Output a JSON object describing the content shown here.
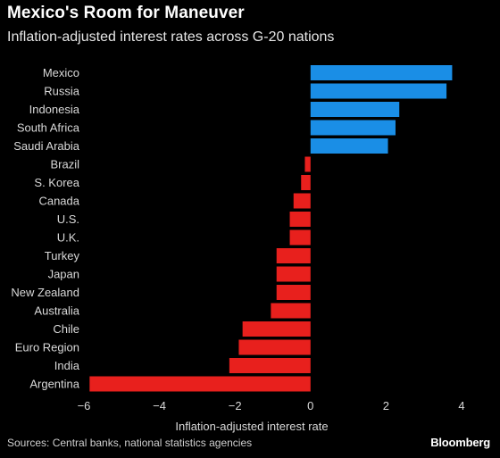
{
  "title": "Mexico's Room for Maneuver",
  "subtitle": "Inflation-adjusted interest rates across G-20 nations",
  "source": "Sources: Central banks, national statistics agencies",
  "brand": "Bloomberg",
  "colors": {
    "positive": "#1a8ee6",
    "negative": "#e8201d",
    "background": "#000000"
  },
  "chart_data": {
    "type": "bar",
    "orientation": "horizontal",
    "title": "Mexico's Room for Maneuver",
    "subtitle": "Inflation-adjusted interest rates across G-20 nations",
    "xlabel": "Inflation-adjusted interest rate",
    "ylabel": "",
    "xlim": [
      -6,
      4
    ],
    "ticks": [
      -6,
      -4,
      -2,
      0,
      2,
      4
    ],
    "categories": [
      "Mexico",
      "Russia",
      "Indonesia",
      "South Africa",
      "Saudi Arabia",
      "Brazil",
      "S. Korea",
      "Canada",
      "U.S.",
      "U.K.",
      "Turkey",
      "Japan",
      "New Zealand",
      "Australia",
      "Chile",
      "Euro Region",
      "India",
      "Argentina"
    ],
    "values": [
      3.75,
      3.6,
      2.35,
      2.25,
      2.05,
      -0.15,
      -0.25,
      -0.45,
      -0.55,
      -0.55,
      -0.9,
      -0.9,
      -0.9,
      -1.05,
      -1.8,
      -1.9,
      -2.15,
      -5.85
    ],
    "grid": false,
    "legend": "none"
  }
}
